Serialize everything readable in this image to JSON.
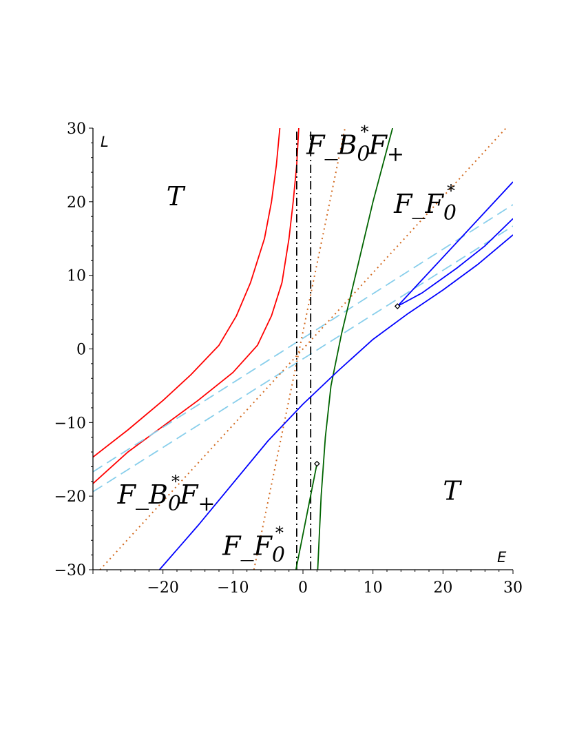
{
  "chart_data": {
    "type": "line",
    "title": "",
    "xlabel": "E",
    "ylabel": "L",
    "xlim": [
      -30,
      30
    ],
    "ylim": [
      -30,
      30
    ],
    "xticks": [
      -20,
      -10,
      0,
      10,
      20,
      30
    ],
    "yticks": [
      -30,
      -20,
      -10,
      0,
      10,
      20,
      30
    ],
    "grid": false,
    "legend": "none",
    "region_labels": [
      {
        "id": "T-upper-left",
        "parts": [
          "T"
        ],
        "x": -19.5,
        "y": 19.5
      },
      {
        "id": "T-lower-right",
        "parts": [
          "T"
        ],
        "x": 20,
        "y": -20.5
      },
      {
        "id": "FBF-top",
        "parts": [
          "F",
          "_",
          "B",
          "0",
          "*",
          "F",
          "+"
        ],
        "x": 0.5,
        "y": 26.5
      },
      {
        "id": "FF0-upper-right",
        "parts": [
          "F",
          "_",
          "F",
          "0",
          "*"
        ],
        "x": 13,
        "y": 18.5
      },
      {
        "id": "FBF-lower-left",
        "parts": [
          "F",
          "_",
          "B",
          "0",
          "*",
          "F",
          "+"
        ],
        "x": -26.5,
        "y": -21
      },
      {
        "id": "FF0-bottom",
        "parts": [
          "F",
          "_",
          "F",
          "0",
          "*"
        ],
        "x": -11.5,
        "y": -28
      }
    ],
    "series": [
      {
        "color": "#ff0000",
        "style": "solid",
        "points": [
          [
            -30,
            -14.7
          ],
          [
            -25,
            -11
          ],
          [
            -20,
            -7
          ],
          [
            -16,
            -3.5
          ],
          [
            -12,
            0.5
          ],
          [
            -9.5,
            4.5
          ],
          [
            -7.5,
            9
          ],
          [
            -5.5,
            15
          ],
          [
            -4.5,
            20
          ],
          [
            -3.8,
            25
          ],
          [
            -3.3,
            30
          ]
        ]
      },
      {
        "color": "#ff0000",
        "style": "solid",
        "points": [
          [
            -30,
            -18.3
          ],
          [
            -25,
            -14
          ],
          [
            -20,
            -10.5
          ],
          [
            -15,
            -7
          ],
          [
            -10,
            -3.2
          ],
          [
            -6.5,
            0.5
          ],
          [
            -4.5,
            4.5
          ],
          [
            -3,
            9
          ],
          [
            -2,
            15
          ],
          [
            -1.4,
            20
          ],
          [
            -0.9,
            25
          ],
          [
            -0.6,
            30
          ]
        ]
      },
      {
        "color": "#87ceeb",
        "style": "dashed",
        "points": [
          [
            -30,
            -16.7
          ],
          [
            30,
            19.6
          ]
        ]
      },
      {
        "color": "#87ceeb",
        "style": "dashed",
        "points": [
          [
            -30,
            -19.4
          ],
          [
            30,
            16.7
          ]
        ]
      },
      {
        "color": "#d2691e",
        "style": "dotted",
        "points": [
          [
            -29,
            -30
          ],
          [
            29,
            30
          ]
        ]
      },
      {
        "color": "#d2691e",
        "style": "dotted",
        "points": [
          [
            -7,
            -30
          ],
          [
            6,
            30
          ]
        ]
      },
      {
        "color": "#000000",
        "style": "dashdot",
        "points": [
          [
            -0.9,
            -30
          ],
          [
            -0.9,
            30
          ]
        ]
      },
      {
        "color": "#000000",
        "style": "dashdot",
        "points": [
          [
            1.1,
            -30
          ],
          [
            1.1,
            30
          ]
        ]
      },
      {
        "color": "#006400",
        "style": "solid",
        "points": [
          [
            12.8,
            30
          ],
          [
            10,
            20
          ],
          [
            7.5,
            10
          ],
          [
            5.5,
            2
          ],
          [
            4,
            -5
          ],
          [
            3.2,
            -12
          ],
          [
            2.6,
            -20
          ],
          [
            2.3,
            -26
          ],
          [
            2.1,
            -30
          ]
        ]
      },
      {
        "color": "#006400",
        "style": "solid",
        "points": [
          [
            -1,
            -30
          ],
          [
            2,
            -15.6
          ]
        ]
      },
      {
        "color": "#0000ff",
        "style": "solid",
        "points": [
          [
            -20.5,
            -30
          ],
          [
            -15,
            -24
          ],
          [
            -5,
            -12.5
          ],
          [
            0,
            -7.5
          ],
          [
            5,
            -3
          ],
          [
            10,
            1.3
          ],
          [
            15,
            4.8
          ],
          [
            20,
            8
          ],
          [
            25,
            11.5
          ],
          [
            30,
            15.5
          ]
        ]
      },
      {
        "color": "#0000ff",
        "style": "solid",
        "points": [
          [
            13.5,
            5.8
          ],
          [
            17,
            7.6
          ],
          [
            22,
            11
          ],
          [
            26,
            14
          ],
          [
            30,
            17.7
          ]
        ]
      },
      {
        "color": "#0000ff",
        "style": "solid",
        "points": [
          [
            13.5,
            5.8
          ],
          [
            30,
            22.7
          ]
        ]
      }
    ],
    "markers": [
      {
        "x": 13.5,
        "y": 5.8
      },
      {
        "x": 2,
        "y": -15.6
      }
    ]
  }
}
